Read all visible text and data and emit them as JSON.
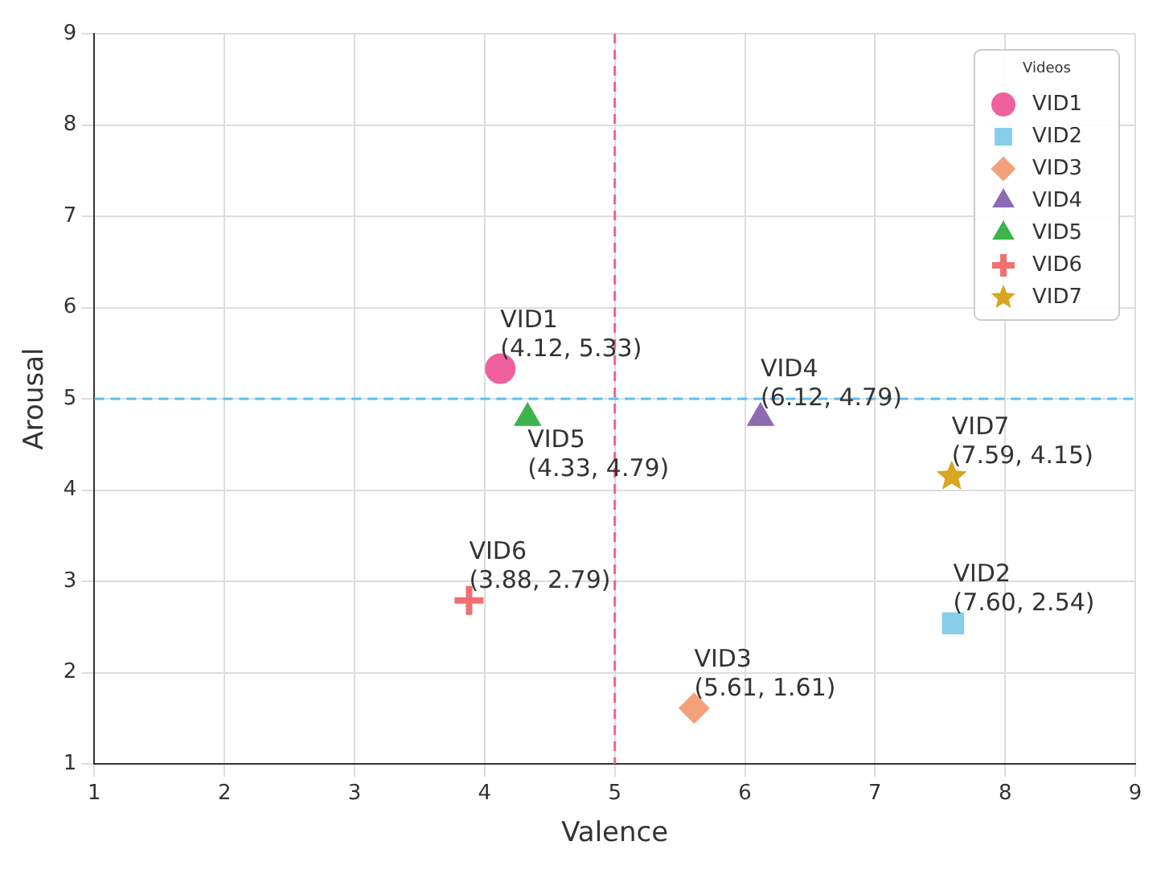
{
  "chart_data": {
    "type": "scatter",
    "xlabel": "Valence",
    "ylabel": "Arousal",
    "legend_title": "Videos",
    "legend": "top right",
    "grid": true,
    "xlim": [
      1,
      9
    ],
    "xticks": [
      1,
      2,
      3,
      4,
      5,
      6,
      7,
      8,
      9
    ],
    "ylim": [
      1,
      9
    ],
    "yticks": [
      1,
      2,
      3,
      4,
      5,
      6,
      7,
      8,
      9
    ],
    "series": [
      {
        "name": "VID1",
        "color": "#f0609e",
        "marker": "circle",
        "x": [
          4.12
        ],
        "values": [
          5.33
        ]
      },
      {
        "name": "VID2",
        "color": "#87ceeb",
        "marker": "square",
        "x": [
          7.6
        ],
        "values": [
          2.54
        ]
      },
      {
        "name": "VID3",
        "color": "#f4a07a",
        "marker": "diamond",
        "x": [
          5.61
        ],
        "values": [
          1.61
        ]
      },
      {
        "name": "VID4",
        "color": "#8c6bb1",
        "marker": "triangle",
        "x": [
          6.12
        ],
        "values": [
          4.79
        ]
      },
      {
        "name": "VID5",
        "color": "#3cb44b",
        "marker": "triangle",
        "x": [
          4.33
        ],
        "values": [
          4.79
        ]
      },
      {
        "name": "VID6",
        "color": "#f07070",
        "marker": "cross",
        "x": [
          3.88
        ],
        "values": [
          2.79
        ]
      },
      {
        "name": "VID7",
        "color": "#daa520",
        "marker": "star",
        "x": [
          7.59
        ],
        "values": [
          4.15
        ]
      }
    ],
    "ref_lines": [
      {
        "axis": "x",
        "value": 5,
        "color": "#f0609e",
        "line_style": "dashed"
      },
      {
        "axis": "y",
        "value": 5,
        "color": "#5bc0eb",
        "line_style": "dashed"
      }
    ],
    "annotations": [
      {
        "text": "VID1\n(4.12, 5.33)",
        "x": 4.12,
        "y": 5.33
      },
      {
        "text": "VID2\n(7.60, 2.54)",
        "x": 7.6,
        "y": 2.54
      },
      {
        "text": "VID3\n(5.61, 1.61)",
        "x": 5.61,
        "y": 1.61
      },
      {
        "text": "VID4\n(6.12, 4.79)",
        "x": 6.12,
        "y": 4.79
      },
      {
        "text": "VID5\n(4.33, 4.79)",
        "x": 4.33,
        "y": 4.79
      },
      {
        "text": "VID6\n(3.88, 2.79)",
        "x": 3.88,
        "y": 2.79
      },
      {
        "text": "VID7\n(7.59, 4.15)",
        "x": 7.59,
        "y": 4.15
      }
    ]
  }
}
